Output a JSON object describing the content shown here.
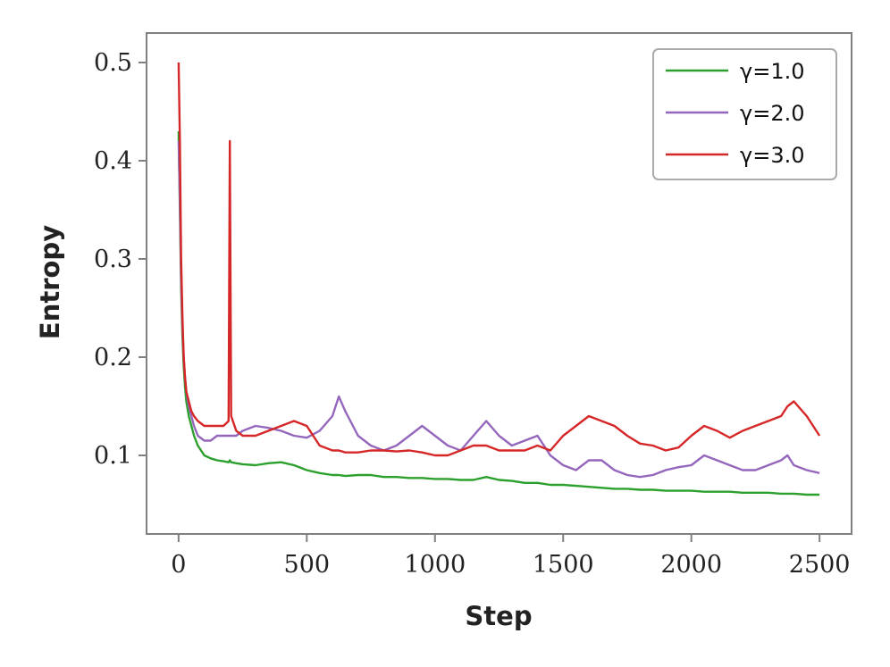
{
  "chart_data": {
    "type": "line",
    "xlabel": "Step",
    "ylabel": "Entropy",
    "xlim": [
      -125,
      2625
    ],
    "ylim": [
      0.02,
      0.53
    ],
    "x_ticks": [
      0,
      500,
      1000,
      1500,
      2000,
      2500
    ],
    "x_tick_labels": [
      "0",
      "500",
      "1000",
      "1500",
      "2000",
      "2500"
    ],
    "y_ticks": [
      0.1,
      0.2,
      0.3,
      0.4,
      0.5
    ],
    "y_tick_labels": [
      "0.1",
      "0.2",
      "0.3",
      "0.4",
      "0.5"
    ],
    "grid": false,
    "legend_position": "top-right",
    "x": [
      0,
      5,
      10,
      15,
      20,
      25,
      30,
      40,
      50,
      60,
      75,
      100,
      125,
      150,
      175,
      195,
      200,
      205,
      225,
      250,
      300,
      350,
      400,
      450,
      500,
      550,
      600,
      625,
      650,
      700,
      750,
      800,
      850,
      900,
      950,
      1000,
      1050,
      1100,
      1150,
      1200,
      1250,
      1300,
      1350,
      1400,
      1450,
      1500,
      1550,
      1600,
      1650,
      1700,
      1750,
      1800,
      1850,
      1900,
      1950,
      2000,
      2050,
      2100,
      2150,
      2200,
      2250,
      2300,
      2350,
      2375,
      2400,
      2450,
      2500
    ],
    "series": [
      {
        "name": "γ=1.0",
        "color": "#2ca02c",
        "values": [
          0.43,
          0.35,
          0.27,
          0.22,
          0.19,
          0.17,
          0.155,
          0.14,
          0.13,
          0.12,
          0.11,
          0.1,
          0.097,
          0.095,
          0.094,
          0.093,
          0.095,
          0.093,
          0.092,
          0.091,
          0.09,
          0.092,
          0.093,
          0.09,
          0.085,
          0.082,
          0.08,
          0.08,
          0.079,
          0.08,
          0.08,
          0.078,
          0.078,
          0.077,
          0.077,
          0.076,
          0.076,
          0.075,
          0.075,
          0.078,
          0.075,
          0.074,
          0.072,
          0.072,
          0.07,
          0.07,
          0.069,
          0.068,
          0.067,
          0.066,
          0.066,
          0.065,
          0.065,
          0.064,
          0.064,
          0.064,
          0.063,
          0.063,
          0.063,
          0.062,
          0.062,
          0.062,
          0.061,
          0.061,
          0.061,
          0.06,
          0.06
        ]
      },
      {
        "name": "γ=2.0",
        "color": "#9467bd",
        "values": [
          0.42,
          0.36,
          0.28,
          0.23,
          0.2,
          0.18,
          0.165,
          0.15,
          0.14,
          0.13,
          0.12,
          0.115,
          0.115,
          0.12,
          0.12,
          0.12,
          0.12,
          0.12,
          0.12,
          0.125,
          0.13,
          0.128,
          0.125,
          0.12,
          0.118,
          0.125,
          0.14,
          0.16,
          0.145,
          0.12,
          0.11,
          0.105,
          0.11,
          0.12,
          0.13,
          0.12,
          0.11,
          0.105,
          0.12,
          0.135,
          0.12,
          0.11,
          0.115,
          0.12,
          0.1,
          0.09,
          0.085,
          0.095,
          0.095,
          0.085,
          0.08,
          0.078,
          0.08,
          0.085,
          0.088,
          0.09,
          0.1,
          0.095,
          0.09,
          0.085,
          0.085,
          0.09,
          0.095,
          0.1,
          0.09,
          0.085,
          0.082
        ]
      },
      {
        "name": "γ=3.0",
        "color": "#d62728",
        "values": [
          0.5,
          0.42,
          0.3,
          0.24,
          0.2,
          0.18,
          0.165,
          0.155,
          0.145,
          0.14,
          0.135,
          0.13,
          0.13,
          0.13,
          0.13,
          0.135,
          0.42,
          0.14,
          0.125,
          0.12,
          0.12,
          0.125,
          0.13,
          0.135,
          0.13,
          0.11,
          0.105,
          0.105,
          0.103,
          0.103,
          0.105,
          0.105,
          0.104,
          0.105,
          0.103,
          0.1,
          0.1,
          0.105,
          0.11,
          0.11,
          0.105,
          0.105,
          0.105,
          0.11,
          0.105,
          0.12,
          0.13,
          0.14,
          0.135,
          0.13,
          0.12,
          0.112,
          0.11,
          0.105,
          0.108,
          0.12,
          0.13,
          0.125,
          0.118,
          0.125,
          0.13,
          0.135,
          0.14,
          0.15,
          0.155,
          0.14,
          0.12
        ]
      }
    ]
  }
}
